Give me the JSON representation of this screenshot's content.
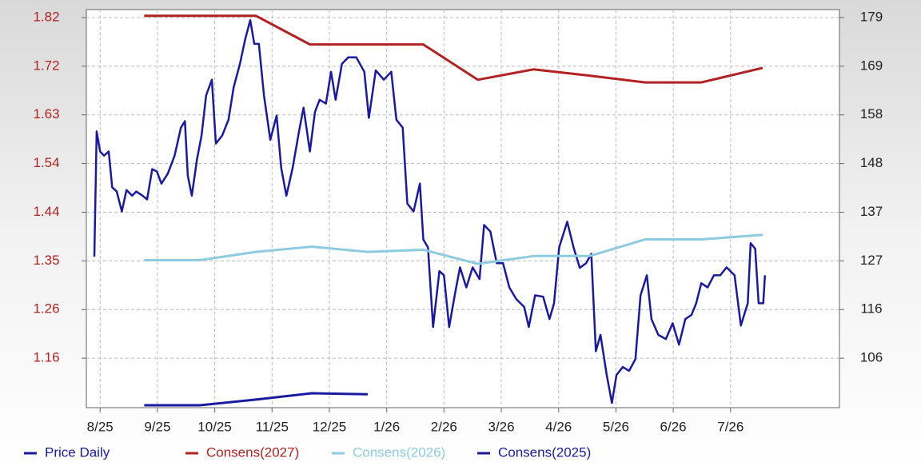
{
  "chart_data": {
    "type": "line",
    "xticks": [
      {
        "value": 0,
        "label": "8/25"
      },
      {
        "value": 1,
        "label": "9/25"
      },
      {
        "value": 2,
        "label": "10/25"
      },
      {
        "value": 3,
        "label": "11/25"
      },
      {
        "value": 4,
        "label": "12/25"
      },
      {
        "value": 5,
        "label": "1/26"
      },
      {
        "value": 6,
        "label": "2/26"
      },
      {
        "value": 7,
        "label": "3/26"
      },
      {
        "value": 8,
        "label": "4/26"
      },
      {
        "value": 9,
        "label": "5/26"
      },
      {
        "value": 10,
        "label": "6/26"
      },
      {
        "value": 11,
        "label": "7/26"
      }
    ],
    "xlim": [
      -0.24,
      12.9
    ],
    "ylim": [
      1.0674,
      1.833
    ],
    "yticks": [
      {
        "value": 1.1625,
        "label": "1.16"
      },
      {
        "value": 1.2561,
        "label": "1.26"
      },
      {
        "value": 1.3497,
        "label": "1.35"
      },
      {
        "value": 1.4433,
        "label": "1.44"
      },
      {
        "value": 1.5369,
        "label": "1.54"
      },
      {
        "value": 1.6305,
        "label": "1.63"
      },
      {
        "value": 1.7241,
        "label": "1.72"
      },
      {
        "value": 1.8177,
        "label": "1.82"
      }
    ],
    "y2lim": [
      95.28,
      180.76
    ],
    "y2ticks": [
      {
        "value": 105.9,
        "label": "106"
      },
      {
        "value": 116.35,
        "label": "116"
      },
      {
        "value": 126.8,
        "label": "127"
      },
      {
        "value": 137.25,
        "label": "137"
      },
      {
        "value": 147.7,
        "label": "148"
      },
      {
        "value": 158.15,
        "label": "158"
      },
      {
        "value": 168.6,
        "label": "169"
      },
      {
        "value": 179.05,
        "label": "179"
      }
    ],
    "grid": true,
    "legend": "bottom",
    "series": [
      {
        "name": "Price Daily",
        "color": "#1a1aa0",
        "axis": "y2",
        "x": [
          -0.1,
          -0.06,
          0.0,
          0.07,
          0.15,
          0.21,
          0.29,
          0.38,
          0.46,
          0.56,
          0.63,
          0.74,
          0.82,
          0.91,
          0.99,
          1.07,
          1.18,
          1.3,
          1.41,
          1.48,
          1.53,
          1.6,
          1.69,
          1.77,
          1.85,
          1.95,
          2.02,
          2.13,
          2.24,
          2.33,
          2.44,
          2.53,
          2.62,
          2.69,
          2.77,
          2.86,
          2.97,
          3.08,
          3.16,
          3.25,
          3.36,
          3.47,
          3.55,
          3.66,
          3.75,
          3.83,
          3.94,
          4.03,
          4.11,
          4.22,
          4.33,
          4.47,
          4.61,
          4.69,
          4.81,
          4.95,
          5.08,
          5.17,
          5.28,
          5.36,
          5.47,
          5.58,
          5.64,
          5.72,
          5.81,
          5.92,
          6.0,
          6.09,
          6.2,
          6.28,
          6.39,
          6.5,
          6.62,
          6.7,
          6.81,
          6.92,
          7.03,
          7.14,
          7.26,
          7.4,
          7.48,
          7.59,
          7.73,
          7.84,
          7.92,
          8.01,
          8.15,
          8.26,
          8.37,
          8.48,
          8.57,
          8.65,
          8.73,
          8.84,
          8.93,
          9.01,
          9.12,
          9.23,
          9.34,
          9.43,
          9.54,
          9.62,
          9.74,
          9.87,
          9.99,
          10.1,
          10.21,
          10.32,
          10.4,
          10.49,
          10.6,
          10.71,
          10.82,
          10.93,
          11.07,
          11.18,
          11.3,
          11.35,
          11.43,
          11.49,
          11.57,
          11.6
        ],
        "values": [
          127.7,
          154.6,
          150.3,
          149.4,
          150.3,
          142.6,
          141.7,
          137.4,
          142.0,
          140.8,
          141.7,
          140.8,
          140.0,
          146.5,
          146.0,
          143.4,
          145.5,
          149.4,
          155.4,
          156.8,
          145.1,
          140.8,
          148.6,
          153.7,
          162.3,
          165.7,
          152.0,
          153.7,
          157.1,
          164.0,
          169.1,
          174.3,
          178.5,
          173.4,
          173.4,
          162.3,
          152.8,
          158.0,
          146.8,
          140.8,
          146.8,
          154.6,
          159.7,
          150.3,
          158.8,
          161.4,
          160.6,
          167.4,
          161.4,
          169.1,
          170.5,
          170.5,
          167.4,
          157.5,
          167.7,
          165.7,
          167.4,
          157.1,
          155.4,
          139.1,
          137.4,
          143.4,
          131.4,
          129.7,
          112.6,
          124.6,
          123.7,
          112.6,
          120.3,
          125.4,
          121.1,
          125.4,
          122.9,
          134.5,
          133.1,
          126.3,
          126.3,
          121.1,
          118.6,
          116.9,
          112.6,
          119.4,
          119.1,
          114.3,
          117.7,
          129.7,
          135.2,
          129.7,
          125.3,
          126.3,
          128.3,
          107.4,
          110.9,
          102.3,
          96.3,
          102.3,
          104.0,
          103.2,
          105.7,
          119.4,
          123.7,
          114.3,
          110.9,
          110.0,
          113.4,
          108.8,
          114.3,
          115.2,
          117.7,
          122.0,
          121.1,
          123.7,
          123.7,
          125.4,
          123.7,
          112.9,
          117.7,
          130.6,
          129.4,
          117.7,
          117.7,
          123.7
        ]
      },
      {
        "name": "Consens(2027)",
        "color": "#b22222",
        "x": [
          0.77,
          2.72,
          3.66,
          5.64,
          6.59,
          7.56,
          8.54,
          9.51,
          10.49,
          11.56
        ],
        "values": [
          1.821,
          1.821,
          1.766,
          1.766,
          1.698,
          1.718,
          1.706,
          1.693,
          1.693,
          1.721
        ]
      },
      {
        "name": "Consens(2026)",
        "color": "#8ccbe0",
        "x": [
          0.77,
          1.74,
          2.72,
          3.69,
          4.67,
          5.64,
          6.59,
          7.56,
          8.54,
          9.51,
          10.49,
          11.56
        ],
        "values": [
          1.351,
          1.351,
          1.367,
          1.377,
          1.367,
          1.371,
          1.344,
          1.359,
          1.359,
          1.391,
          1.391,
          1.4
        ]
      },
      {
        "name": "Consens(2025)",
        "color": "#1a1aa0",
        "x": [
          0.77,
          1.74,
          2.72,
          3.69,
          4.67
        ],
        "values": [
          1.072,
          1.072,
          1.083,
          1.095,
          1.093
        ]
      }
    ]
  }
}
